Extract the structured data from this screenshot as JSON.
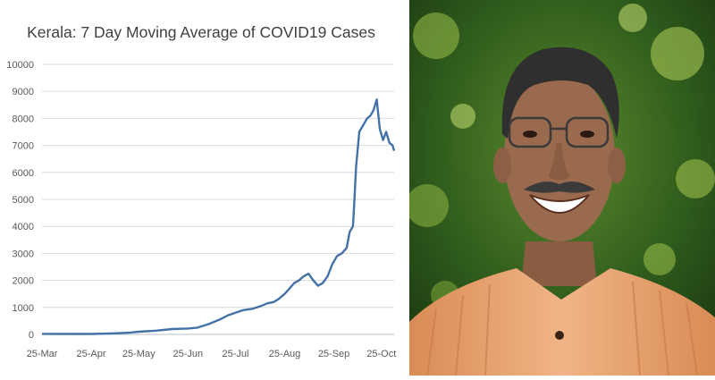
{
  "chart_data": {
    "type": "line",
    "title": "Kerala: 7 Day Moving Average of COVID19 Cases",
    "xlabel": "",
    "ylabel": "",
    "ylim": [
      0,
      10000
    ],
    "yticks": [
      "0",
      "1000",
      "2000",
      "3000",
      "4000",
      "5000",
      "6000",
      "7000",
      "8000",
      "9000",
      "10000"
    ],
    "xticks": [
      "25-Mar",
      "25-Apr",
      "25-May",
      "25-Jun",
      "25-Jul",
      "25-Aug",
      "25-Sep",
      "25-Oct"
    ],
    "xrange": [
      "2020-03-25",
      "2020-11-02"
    ],
    "grid": true,
    "legend": "none",
    "line_color": "#4472a8",
    "series": [
      {
        "x": [
          "2020-03-25",
          "2020-04-10",
          "2020-04-25",
          "2020-05-10",
          "2020-05-20",
          "2020-05-25",
          "2020-06-05",
          "2020-06-15",
          "2020-06-25",
          "2020-07-01",
          "2020-07-08",
          "2020-07-15",
          "2020-07-20",
          "2020-07-25",
          "2020-07-30",
          "2020-08-05",
          "2020-08-10",
          "2020-08-14",
          "2020-08-18",
          "2020-08-21",
          "2020-08-25",
          "2020-08-28",
          "2020-08-31",
          "2020-09-03",
          "2020-09-06",
          "2020-09-09",
          "2020-09-12",
          "2020-09-15",
          "2020-09-18",
          "2020-09-21",
          "2020-09-24",
          "2020-09-27",
          "2020-09-30",
          "2020-10-03",
          "2020-10-05",
          "2020-10-07",
          "2020-10-08",
          "2020-10-09",
          "2020-10-11",
          "2020-10-13",
          "2020-10-16",
          "2020-10-18",
          "2020-10-20",
          "2020-10-22",
          "2020-10-24",
          "2020-10-26",
          "2020-10-28",
          "2020-10-30",
          "2020-11-01",
          "2020-11-02"
        ],
        "y": [
          20,
          15,
          15,
          40,
          70,
          100,
          140,
          200,
          220,
          250,
          380,
          550,
          700,
          800,
          900,
          950,
          1050,
          1150,
          1200,
          1300,
          1500,
          1700,
          1900,
          2000,
          2150,
          2250,
          2000,
          1800,
          1900,
          2150,
          2600,
          2900,
          3000,
          3200,
          3800,
          4000,
          5000,
          6200,
          7500,
          7700,
          8000,
          8100,
          8300,
          8700,
          7600,
          7200,
          7500,
          7100,
          7000,
          6800
        ]
      }
    ]
  },
  "photo": {
    "subject": "smiling man with glasses and moustache",
    "background_color": "#2e5a1c",
    "shirt_color": "#e8a46e",
    "skin_color": "#9a6a4e",
    "hair_color": "#2f2f2f"
  }
}
